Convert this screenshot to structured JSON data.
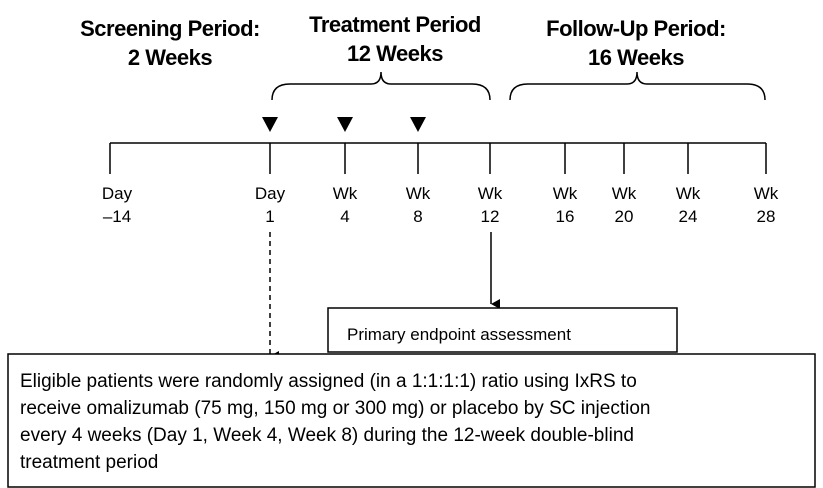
{
  "periods": [
    {
      "lines": [
        "Screening Period:",
        "2 Weeks"
      ]
    },
    {
      "lines": [
        "Treatment Period",
        "12 Weeks"
      ]
    },
    {
      "lines": [
        "Follow-Up Period:",
        "16 Weeks"
      ]
    }
  ],
  "timepoints": [
    {
      "lines": [
        "Day",
        "–14"
      ]
    },
    {
      "lines": [
        "Day",
        "1"
      ]
    },
    {
      "lines": [
        "Wk",
        "4"
      ]
    },
    {
      "lines": [
        "Wk",
        "8"
      ]
    },
    {
      "lines": [
        "Wk",
        "12"
      ]
    },
    {
      "lines": [
        "Wk",
        "16"
      ]
    },
    {
      "lines": [
        "Wk",
        "20"
      ]
    },
    {
      "lines": [
        "Wk",
        "24"
      ]
    },
    {
      "lines": [
        "Wk",
        "28"
      ]
    }
  ],
  "endpoint_box": {
    "text": "Primary endpoint assessment"
  },
  "randomization_box": {
    "lines": [
      "Eligible patients were randomly assigned (in a 1:1:1:1) ratio using IxRS to",
      "receive omalizumab (75 mg, 150 mg or 300 mg) or placebo by SC injection",
      "every 4 weeks (Day 1, Week 4, Week 8) during the 12-week double-blind",
      "treatment period"
    ]
  }
}
